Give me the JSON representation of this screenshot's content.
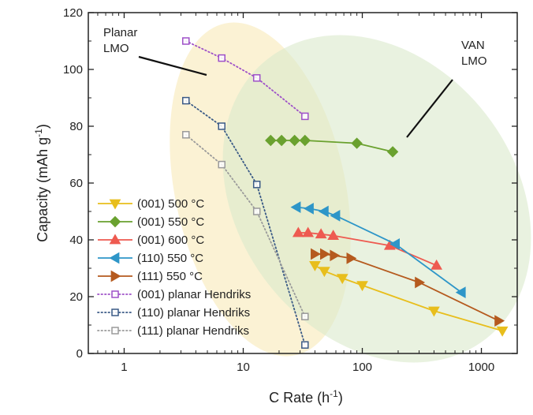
{
  "chart_data": {
    "type": "scatter",
    "xscale": "log",
    "xlim": [
      0.5,
      2000
    ],
    "ylim": [
      0,
      120
    ],
    "xticks": [
      {
        "value": 1,
        "label": "1"
      },
      {
        "value": 10,
        "label": "10"
      },
      {
        "value": 100,
        "label": "100"
      },
      {
        "value": 1000,
        "label": "1000"
      }
    ],
    "yticks": [
      {
        "value": 0,
        "label": "0"
      },
      {
        "value": 20,
        "label": "20"
      },
      {
        "value": 40,
        "label": "40"
      },
      {
        "value": 60,
        "label": "60"
      },
      {
        "value": 80,
        "label": "80"
      },
      {
        "value": 100,
        "label": "100"
      },
      {
        "value": 120,
        "label": "120"
      }
    ],
    "xlabel": {
      "main": "C Rate (h",
      "sup": "-1",
      "end": ")"
    },
    "ylabel": {
      "main": "Capacity (mAh g",
      "sup": "-1",
      "end": ")"
    },
    "legend_position": "bottom-left",
    "annotations": [
      {
        "name": "planar-lmo",
        "lines": [
          "Planar",
          "LMO"
        ]
      },
      {
        "name": "van-lmo",
        "lines": [
          "VAN",
          "LMO"
        ]
      }
    ],
    "series": [
      {
        "name": "(001) 500 °C",
        "color": "#e8be1c",
        "marker": "triangle-down",
        "style": "solid",
        "x": [
          40,
          48,
          68,
          100,
          400,
          1500
        ],
        "y": [
          31,
          29,
          26.5,
          24,
          15,
          8
        ]
      },
      {
        "name": "(001) 550 °C",
        "color": "#6aa12f",
        "marker": "diamond",
        "style": "solid",
        "x": [
          17,
          21,
          27,
          33,
          90,
          180
        ],
        "y": [
          75,
          75,
          75,
          75,
          74,
          71
        ]
      },
      {
        "name": "(001) 600 °C",
        "color": "#ee5a50",
        "marker": "triangle-up",
        "style": "solid",
        "x": [
          29,
          35,
          45,
          57,
          170,
          420
        ],
        "y": [
          42.5,
          42.5,
          42,
          41.5,
          38,
          31
        ]
      },
      {
        "name": "(110) 550 °C",
        "color": "#2e96c8",
        "marker": "triangle-left",
        "style": "solid",
        "x": [
          28,
          36,
          48,
          60,
          190,
          680
        ],
        "y": [
          51.5,
          51,
          50,
          48.5,
          38.5,
          21.5
        ]
      },
      {
        "name": "(111) 550 °C",
        "color": "#b55a1e",
        "marker": "triangle-right",
        "style": "solid",
        "x": [
          40,
          48,
          58,
          80,
          300,
          1400
        ],
        "y": [
          35,
          35,
          34.5,
          33.5,
          25,
          11.5
        ]
      },
      {
        "name": "(001) planar Hendriks",
        "color": "#9e50c8",
        "marker": "square-open",
        "style": "dotted",
        "x": [
          3.3,
          6.6,
          13,
          33
        ],
        "y": [
          110,
          104,
          97,
          83.5
        ]
      },
      {
        "name": "(110) planar Hendriks",
        "color": "#3a5a86",
        "marker": "square-open",
        "style": "dotted",
        "x": [
          3.3,
          6.6,
          13,
          33
        ],
        "y": [
          89,
          80,
          59.5,
          3
        ]
      },
      {
        "name": "(111) planar Hendriks",
        "color": "#9a9a9a",
        "marker": "square-open",
        "style": "dotted",
        "x": [
          3.3,
          6.6,
          13,
          33
        ],
        "y": [
          77,
          66.5,
          50,
          13
        ]
      }
    ]
  }
}
